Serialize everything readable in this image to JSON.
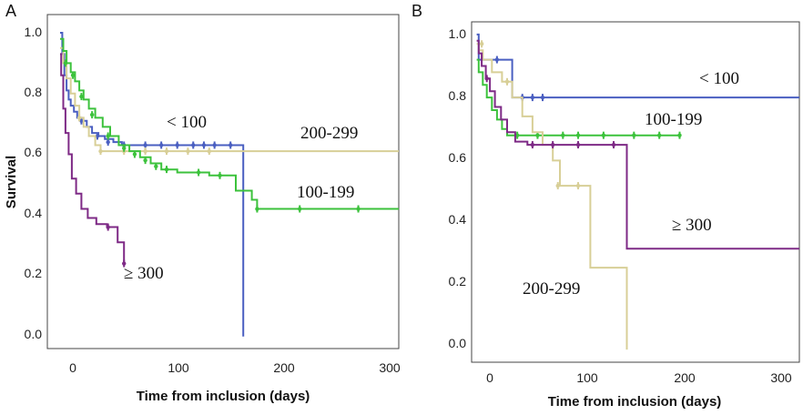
{
  "chart_data": [
    {
      "panel": "A",
      "type": "line",
      "xlabel": "Time from inclusion (days)",
      "ylabel": "Survival",
      "xlim": [
        -12,
        318
      ],
      "ylim": [
        -0.04,
        1.06
      ],
      "xticks": [
        "0",
        "100",
        "200",
        "300"
      ],
      "yticks": [
        "0.0",
        "0.2",
        "0.4",
        "0.6",
        "0.8",
        "1.0"
      ],
      "series": [
        {
          "name": "< 100",
          "color": "#4a5fc1",
          "x": [
            0,
            2,
            4,
            6,
            8,
            10,
            13,
            16,
            20,
            25,
            30,
            36,
            42,
            50,
            58,
            70,
            172,
            172
          ],
          "y": [
            1.0,
            0.93,
            0.86,
            0.81,
            0.78,
            0.76,
            0.74,
            0.72,
            0.71,
            0.69,
            0.67,
            0.66,
            0.65,
            0.64,
            0.63,
            0.63,
            0.63,
            0.0
          ],
          "censored": [
            [
              20,
              0.71
            ],
            [
              35,
              0.66
            ],
            [
              45,
              0.64
            ],
            [
              60,
              0.63
            ],
            [
              80,
              0.63
            ],
            [
              95,
              0.63
            ],
            [
              110,
              0.63
            ],
            [
              125,
              0.63
            ],
            [
              135,
              0.63
            ],
            [
              145,
              0.63
            ],
            [
              160,
              0.63
            ]
          ]
        },
        {
          "name": "200-299",
          "color": "#d8cf97",
          "x": [
            0,
            3,
            6,
            10,
            14,
            18,
            22,
            27,
            33,
            38,
            45,
            318
          ],
          "y": [
            0.95,
            0.9,
            0.85,
            0.8,
            0.76,
            0.72,
            0.69,
            0.66,
            0.63,
            0.61,
            0.61,
            0.61
          ],
          "censored": [
            [
              18,
              0.72
            ],
            [
              38,
              0.61
            ],
            [
              60,
              0.61
            ],
            [
              80,
              0.61
            ],
            [
              100,
              0.61
            ],
            [
              120,
              0.61
            ],
            [
              140,
              0.61
            ]
          ]
        },
        {
          "name": "100-199",
          "color": "#3cc23c",
          "x": [
            0,
            3,
            6,
            10,
            14,
            18,
            22,
            27,
            33,
            40,
            47,
            55,
            65,
            75,
            85,
            95,
            110,
            120,
            140,
            155,
            165,
            180,
            185,
            318
          ],
          "y": [
            0.98,
            0.94,
            0.9,
            0.87,
            0.84,
            0.81,
            0.78,
            0.75,
            0.72,
            0.69,
            0.66,
            0.63,
            0.61,
            0.59,
            0.57,
            0.55,
            0.54,
            0.54,
            0.53,
            0.53,
            0.48,
            0.45,
            0.42,
            0.42
          ],
          "censored": [
            [
              5,
              0.9
            ],
            [
              12,
              0.86
            ],
            [
              20,
              0.79
            ],
            [
              30,
              0.73
            ],
            [
              45,
              0.66
            ],
            [
              60,
              0.62
            ],
            [
              70,
              0.6
            ],
            [
              80,
              0.58
            ],
            [
              90,
              0.56
            ],
            [
              100,
              0.55
            ],
            [
              130,
              0.54
            ],
            [
              150,
              0.53
            ],
            [
              185,
              0.42
            ],
            [
              225,
              0.42
            ],
            [
              280,
              0.42
            ]
          ]
        },
        {
          "name": "≥ 300",
          "color": "#7e2a86",
          "x": [
            0,
            1,
            3,
            5,
            8,
            11,
            15,
            20,
            26,
            34,
            44,
            54,
            60
          ],
          "y": [
            0.93,
            0.86,
            0.75,
            0.67,
            0.6,
            0.52,
            0.47,
            0.42,
            0.39,
            0.37,
            0.36,
            0.31,
            0.24
          ],
          "censored": [
            [
              45,
              0.36
            ],
            [
              60,
              0.24
            ]
          ]
        }
      ]
    },
    {
      "panel": "B",
      "type": "line",
      "xlabel": "Time from inclusion (days)",
      "ylabel": "",
      "xlim": [
        -5,
        318
      ],
      "ylim": [
        -0.04,
        1.04
      ],
      "xticks": [
        "0",
        "100",
        "200",
        "300"
      ],
      "yticks": [
        "0.0",
        "0.2",
        "0.4",
        "0.6",
        "0.8",
        "1.0"
      ],
      "series": [
        {
          "name": "< 100",
          "color": "#4a5fc1",
          "x": [
            0,
            2,
            8,
            20,
            35,
            318
          ],
          "y": [
            1.0,
            0.92,
            0.92,
            0.92,
            0.8,
            0.8
          ],
          "censored": [
            [
              20,
              0.92
            ],
            [
              45,
              0.8
            ],
            [
              55,
              0.8
            ],
            [
              65,
              0.8
            ]
          ]
        },
        {
          "name": "100-199",
          "color": "#3cc23c",
          "x": [
            0,
            2,
            6,
            10,
            15,
            20,
            25,
            30,
            35,
            200
          ],
          "y": [
            0.92,
            0.88,
            0.84,
            0.8,
            0.76,
            0.73,
            0.7,
            0.68,
            0.68,
            0.68
          ],
          "censored": [
            [
              40,
              0.68
            ],
            [
              60,
              0.68
            ],
            [
              85,
              0.68
            ],
            [
              100,
              0.68
            ],
            [
              125,
              0.68
            ],
            [
              155,
              0.68
            ],
            [
              180,
              0.68
            ],
            [
              200,
              0.68
            ]
          ]
        },
        {
          "name": "200-299",
          "color": "#d8cf97",
          "x": [
            0,
            2,
            6,
            15,
            25,
            35,
            45,
            55,
            65,
            75,
            82,
            105,
            112,
            148,
            148
          ],
          "y": [
            0.97,
            0.95,
            0.92,
            0.88,
            0.85,
            0.8,
            0.74,
            0.69,
            0.65,
            0.6,
            0.52,
            0.52,
            0.26,
            0.26,
            0.0
          ],
          "censored": [
            [
              5,
              0.97
            ],
            [
              30,
              0.85
            ],
            [
              80,
              0.52
            ],
            [
              100,
              0.52
            ]
          ]
        },
        {
          "name": "≥ 300",
          "color": "#7e2a86",
          "x": [
            0,
            2,
            5,
            9,
            13,
            18,
            24,
            30,
            38,
            50,
            65,
            148,
            148,
            318
          ],
          "y": [
            0.98,
            0.94,
            0.9,
            0.86,
            0.82,
            0.77,
            0.73,
            0.69,
            0.66,
            0.65,
            0.65,
            0.65,
            0.32,
            0.32
          ],
          "censored": [
            [
              10,
              0.86
            ],
            [
              55,
              0.65
            ],
            [
              75,
              0.65
            ],
            [
              100,
              0.65
            ],
            [
              135,
              0.65
            ]
          ]
        }
      ]
    }
  ]
}
